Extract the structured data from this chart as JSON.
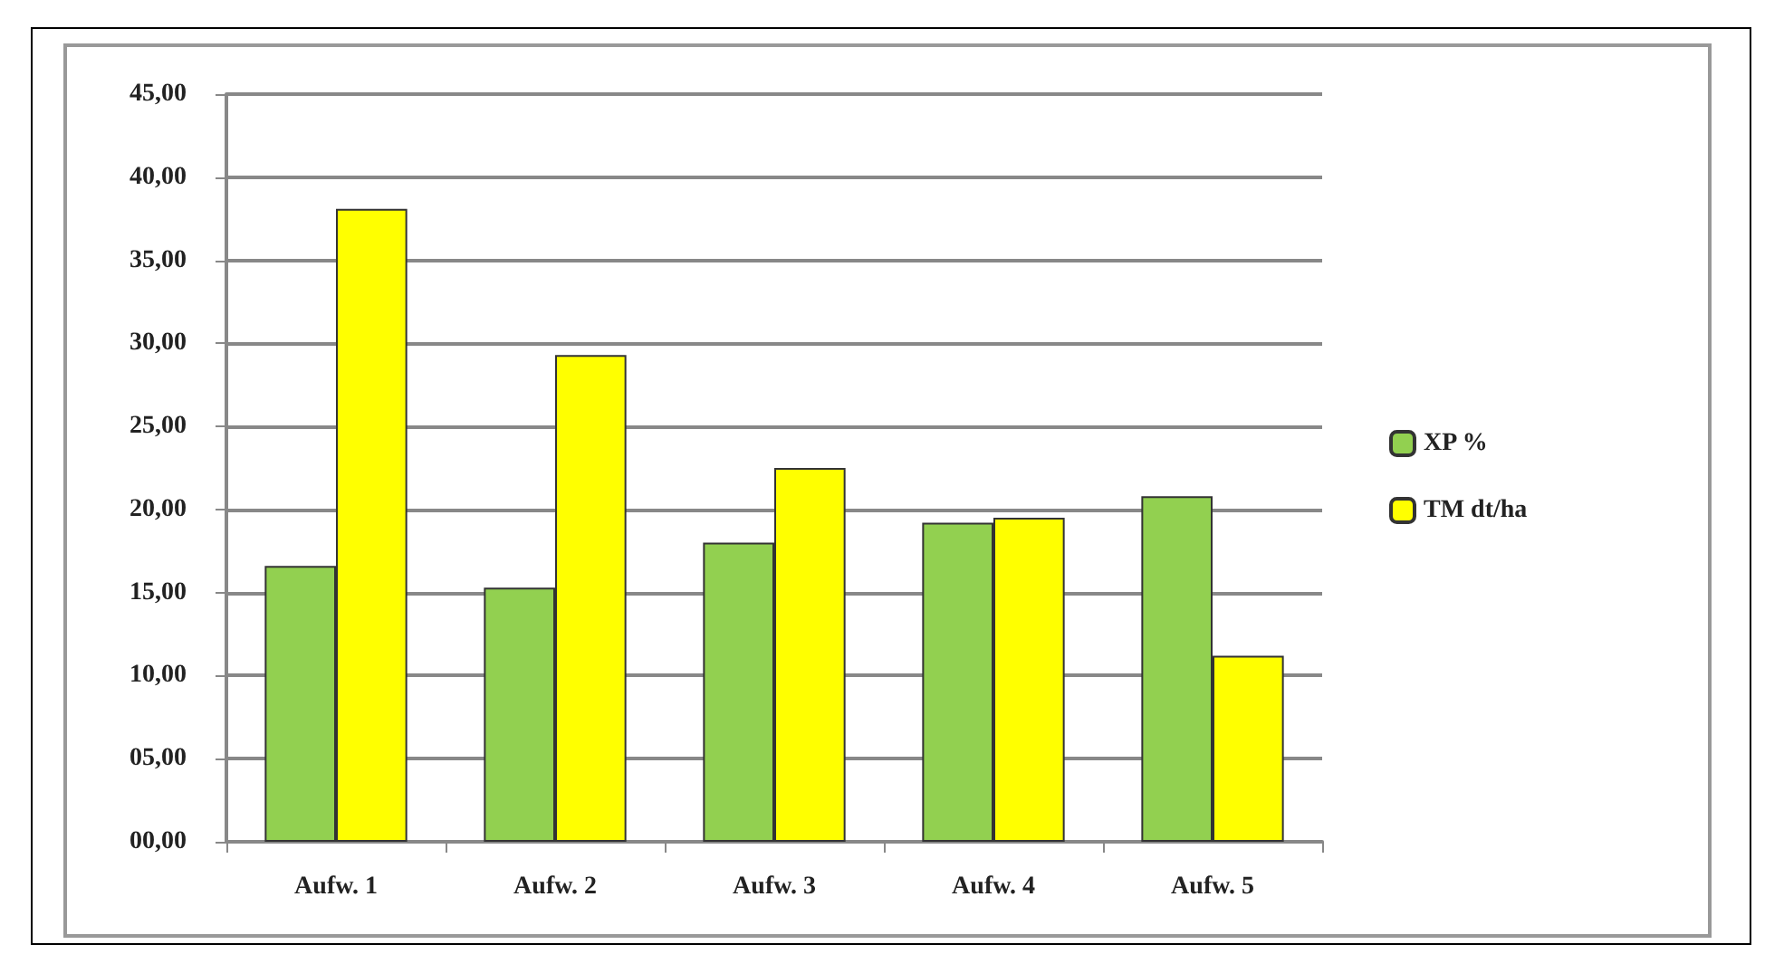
{
  "chart_data": {
    "type": "bar",
    "categories": [
      "Aufw. 1",
      "Aufw. 2",
      "Aufw. 3",
      "Aufw. 4",
      "Aufw. 5"
    ],
    "series": [
      {
        "name": "XP %",
        "color": "#92d050",
        "values": [
          16.6,
          15.3,
          18.0,
          19.2,
          20.8
        ]
      },
      {
        "name": "TM dt/ha",
        "color": "#ffff00",
        "values": [
          38.1,
          29.3,
          22.5,
          19.5,
          11.2
        ]
      }
    ],
    "ylim": [
      0,
      45
    ],
    "yticks": [
      {
        "value": 0,
        "label": "00,00"
      },
      {
        "value": 5,
        "label": "05,00"
      },
      {
        "value": 10,
        "label": "10,00"
      },
      {
        "value": 15,
        "label": "15,00"
      },
      {
        "value": 20,
        "label": "20,00"
      },
      {
        "value": 25,
        "label": "25,00"
      },
      {
        "value": 30,
        "label": "30,00"
      },
      {
        "value": 35,
        "label": "35,00"
      },
      {
        "value": 40,
        "label": "40,00"
      },
      {
        "value": 45,
        "label": "45,00"
      }
    ],
    "grid": "y",
    "legend": "right"
  }
}
